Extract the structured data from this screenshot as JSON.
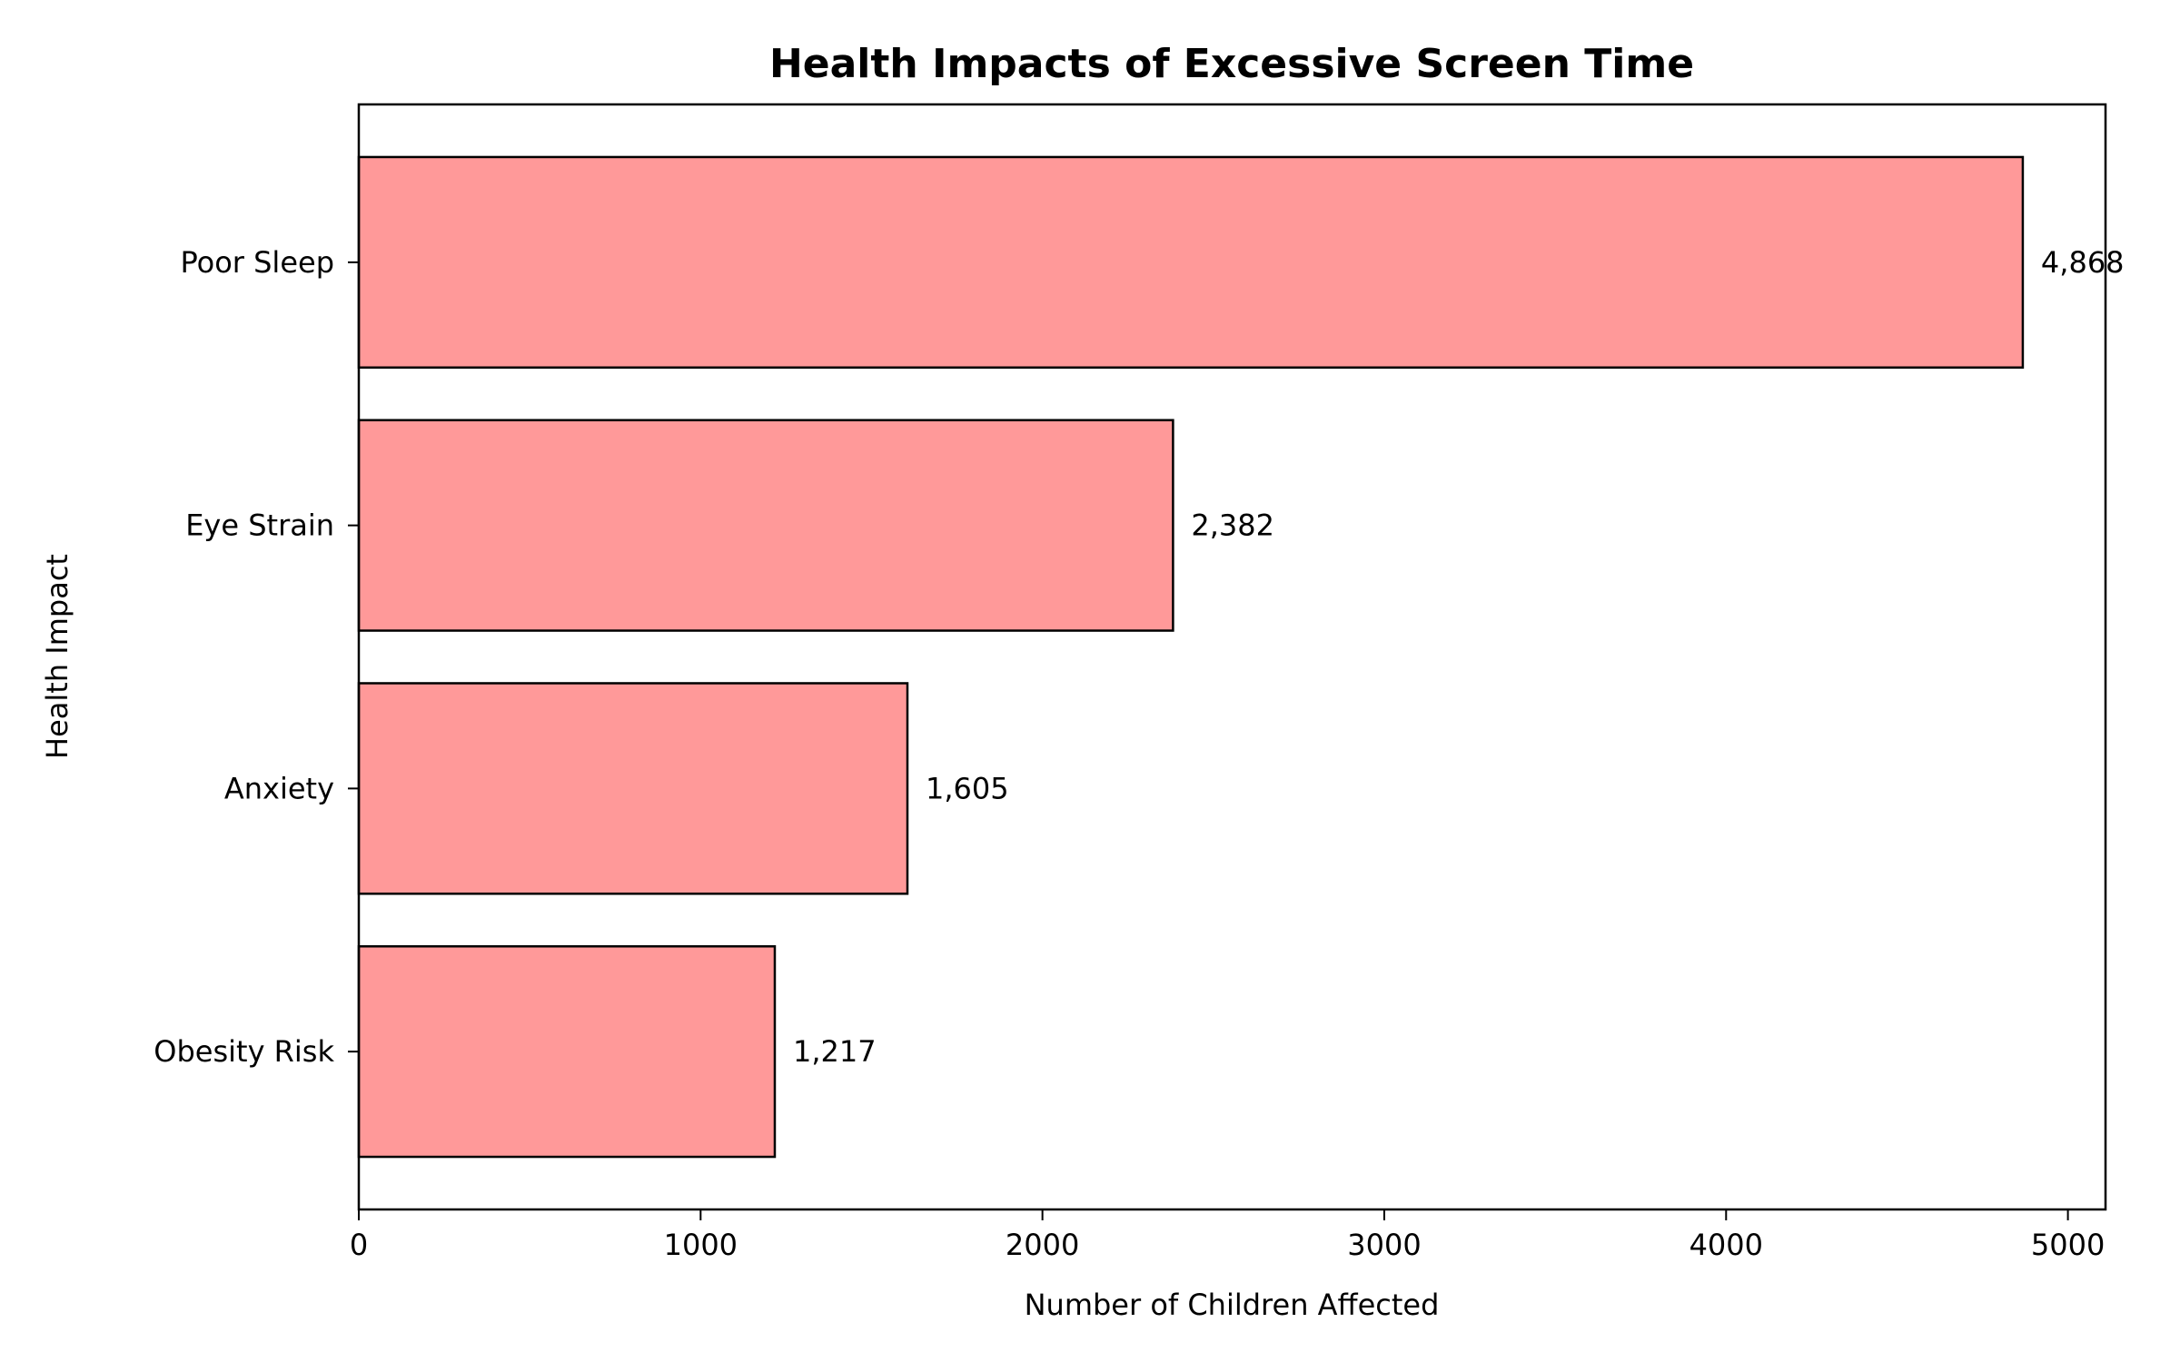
{
  "chart_data": {
    "type": "bar",
    "orientation": "horizontal",
    "title": "Health Impacts of Excessive Screen Time",
    "xlabel": "Number of Children Affected",
    "ylabel": "Health Impact",
    "categories": [
      "Obesity Risk",
      "Anxiety",
      "Eye Strain",
      "Poor Sleep"
    ],
    "values": [
      1217,
      1605,
      2382,
      4868
    ],
    "value_labels": [
      "1,217",
      "1,605",
      "2,382",
      "4,868"
    ],
    "xlim": [
      0,
      5110
    ],
    "xticks": [
      0,
      1000,
      2000,
      3000,
      4000,
      5000
    ],
    "grid": false,
    "bar_color": "#ff9999",
    "edge_color": "#000000"
  }
}
